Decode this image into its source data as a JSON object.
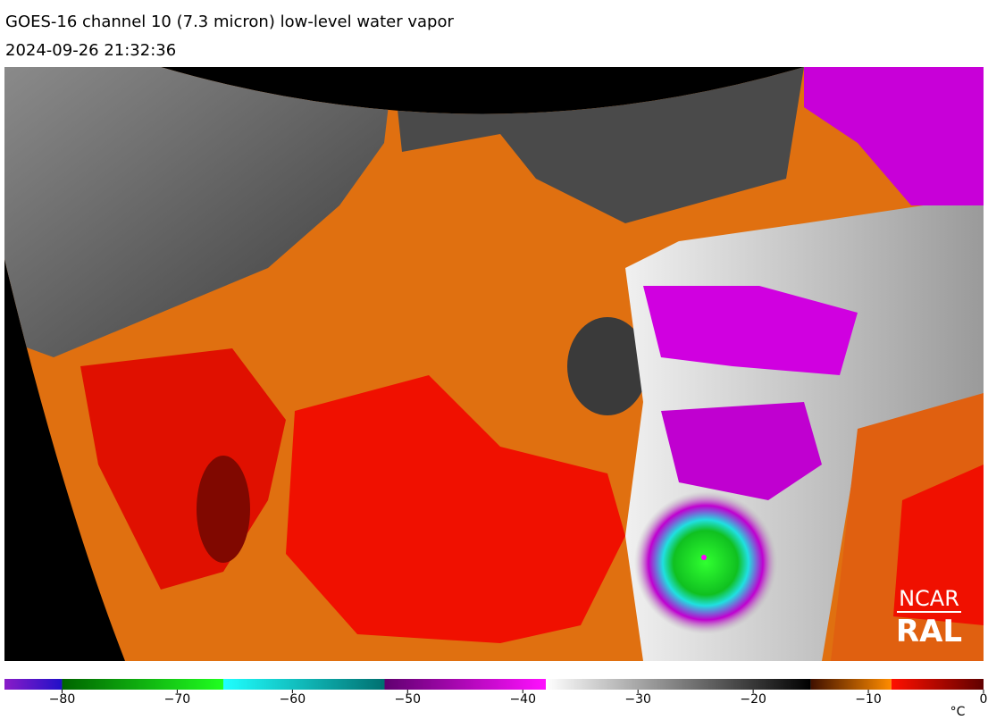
{
  "header": {
    "title": "GOES-16 channel 10 (7.3 micron) low-level water vapor",
    "timestamp": "2024-09-26 21:32:36"
  },
  "logo": {
    "line1": "NCAR",
    "line2": "RAL"
  },
  "colorbar": {
    "lim": [
      -85,
      0
    ],
    "ticks": [
      {
        "value": -80,
        "label": "−80"
      },
      {
        "value": -70,
        "label": "−70"
      },
      {
        "value": -60,
        "label": "−60"
      },
      {
        "value": -50,
        "label": "−50"
      },
      {
        "value": -40,
        "label": "−40"
      },
      {
        "value": -30,
        "label": "−30"
      },
      {
        "value": -20,
        "label": "−20"
      },
      {
        "value": -10,
        "label": "−10"
      },
      0
    ],
    "unit": "°C",
    "segments": [
      {
        "from": -85,
        "to": -80,
        "colors": [
          "#8a1cc8",
          "#2010c8"
        ]
      },
      {
        "from": -80,
        "to": -66,
        "colors": [
          "#006400",
          "#20ff20"
        ]
      },
      {
        "from": -66,
        "to": -52,
        "colors": [
          "#20ffff",
          "#007070"
        ]
      },
      {
        "from": -52,
        "to": -38,
        "colors": [
          "#600070",
          "#ff10ff"
        ]
      },
      {
        "from": -38,
        "to": -15,
        "colors": [
          "#ffffff",
          "#000000"
        ]
      },
      {
        "from": -15,
        "to": -8,
        "colors": [
          "#401000",
          "#ff8c00"
        ]
      },
      {
        "from": -8,
        "to": 0,
        "colors": [
          "#ff1000",
          "#600000"
        ]
      }
    ]
  }
}
